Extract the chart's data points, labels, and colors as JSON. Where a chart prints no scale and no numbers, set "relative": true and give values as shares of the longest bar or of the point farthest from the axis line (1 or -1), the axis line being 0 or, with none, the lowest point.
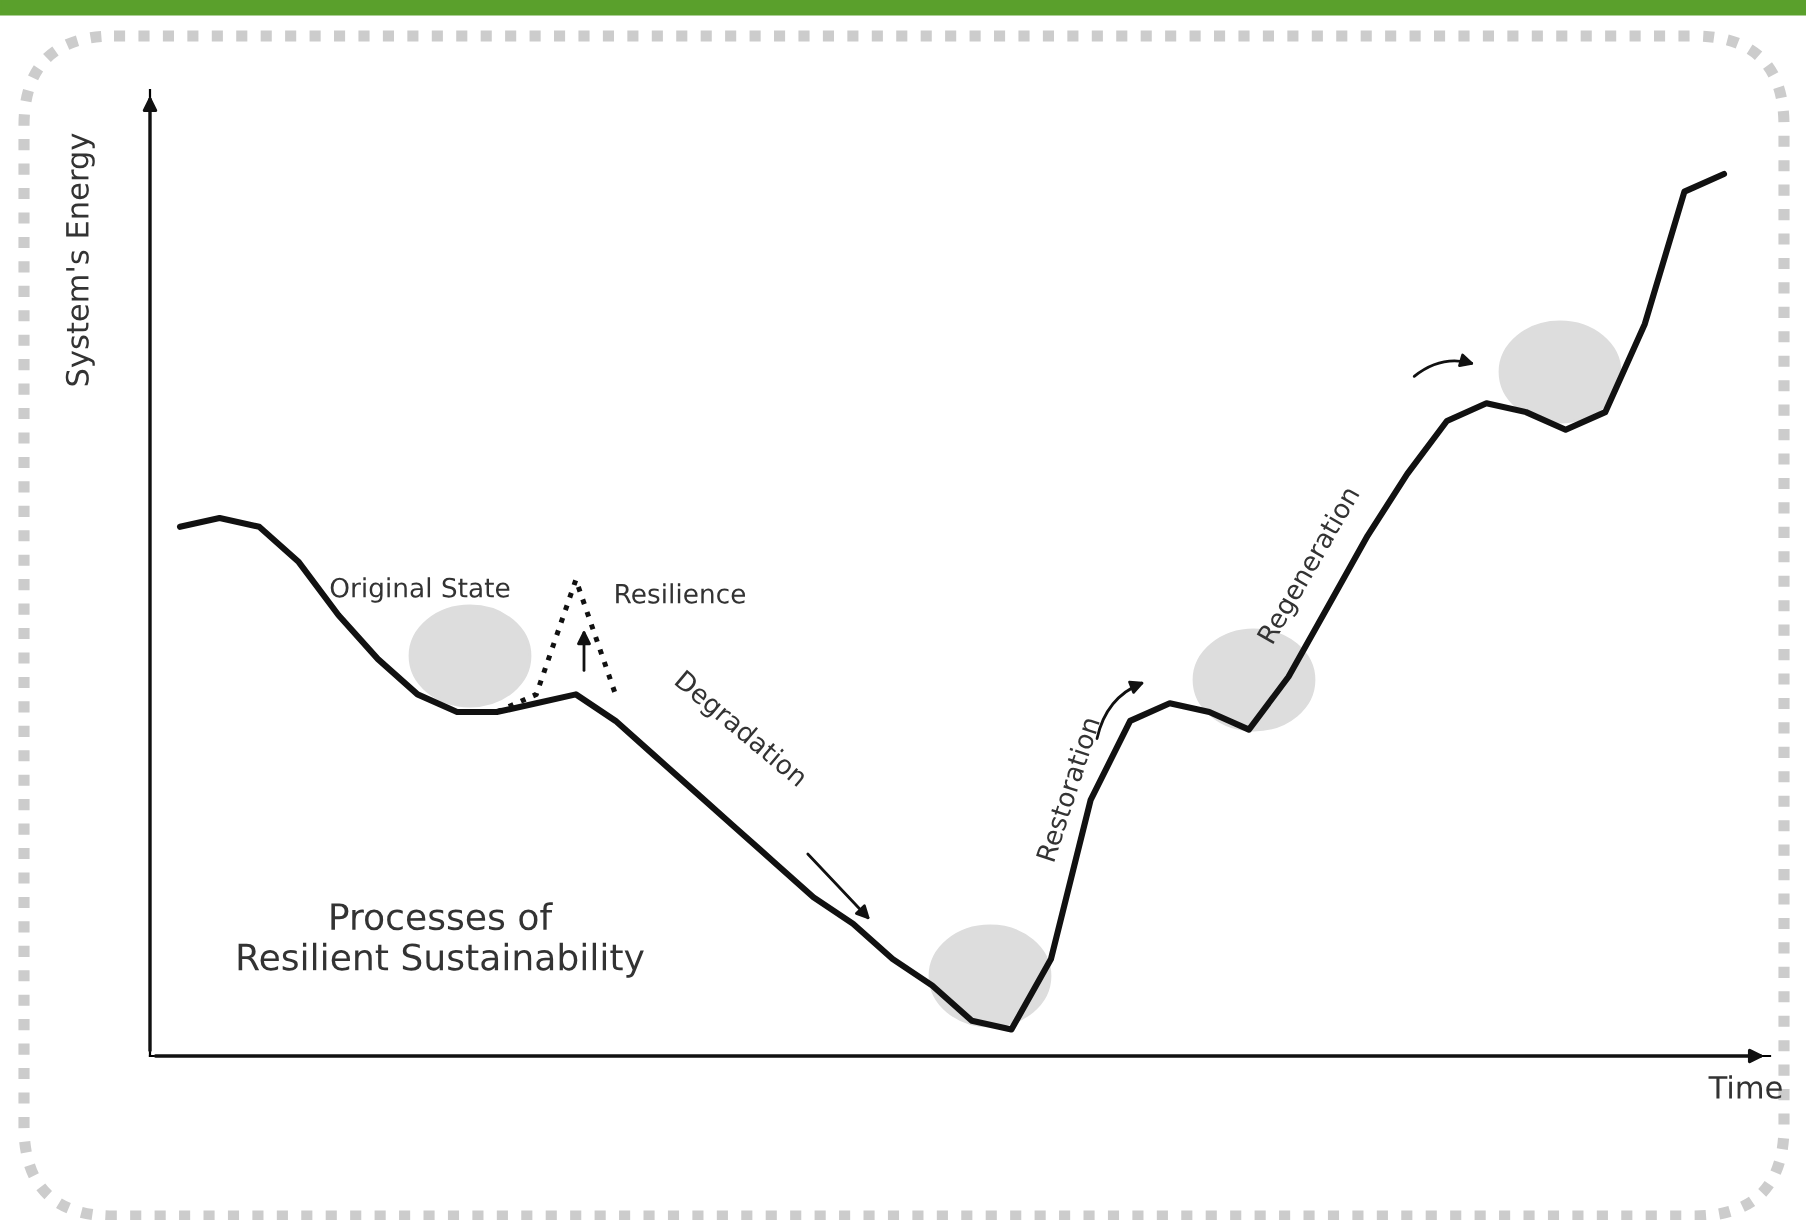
{
  "chart_data": {
    "type": "line",
    "relative": true,
    "xlabel": "Time",
    "ylabel": "System's Energy",
    "categories": [
      null,
      null,
      null,
      null,
      null,
      null,
      null,
      null,
      null,
      null,
      null,
      null,
      null,
      null,
      null,
      null,
      null,
      null,
      null,
      null,
      null,
      null,
      null,
      null,
      null,
      null,
      null,
      null,
      null,
      null,
      null,
      null,
      null,
      null,
      null,
      null,
      null,
      null,
      null,
      null
    ],
    "series": [
      {
        "color": "#111111",
        "line_style": "solid",
        "values": [
          0.6,
          0.61,
          0.6,
          0.56,
          0.5,
          0.45,
          0.41,
          0.39,
          0.39,
          0.4,
          0.41,
          0.38,
          0.34,
          0.3,
          0.26,
          0.22,
          0.18,
          0.15,
          0.11,
          0.08,
          0.04,
          0.03,
          0.11,
          0.29,
          0.38,
          0.4,
          0.39,
          0.37,
          0.43,
          0.51,
          0.59,
          0.66,
          0.72,
          0.74,
          0.73,
          0.71,
          0.73,
          0.83,
          0.98,
          1.0
        ]
      },
      {
        "color": "#111111",
        "line_style": "dotted",
        "values": [
          null,
          null,
          null,
          null,
          null,
          null,
          null,
          null,
          0.39,
          0.41,
          0.54,
          0.41,
          null,
          null,
          null,
          null,
          null,
          null,
          null,
          null,
          null,
          null,
          null,
          null,
          null,
          null,
          null,
          null,
          null,
          null,
          null,
          null,
          null,
          null,
          null,
          null,
          null,
          null,
          null,
          null
        ]
      }
    ],
    "annotations": [
      "Original State",
      "Resilience",
      "Degradation",
      "Restoration",
      "Regeneration",
      "Processes of\nResilient Sustainability"
    ],
    "grid": false,
    "legend": false,
    "marker": "none"
  }
}
